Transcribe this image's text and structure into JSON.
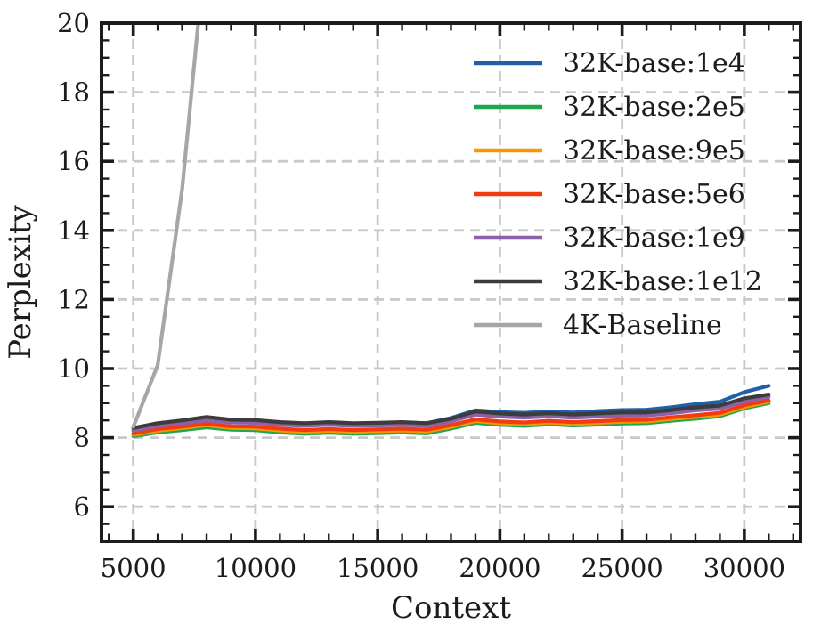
{
  "figure": {
    "title": "",
    "xlabel": "Context",
    "ylabel": "Perplexity"
  },
  "colors": {
    "axis": "#1c1c1c",
    "grid": "#c9c9c9",
    "background": "#ffffff"
  },
  "chart_data": {
    "type": "line",
    "title": "",
    "xlabel": "Context",
    "ylabel": "Perplexity",
    "xlim": [
      3700,
      32300
    ],
    "ylim": [
      5,
      20
    ],
    "grid": {
      "visible": true,
      "style": "dashed",
      "color": "#c9c9c9"
    },
    "x_major_ticks": [
      5000,
      10000,
      15000,
      20000,
      25000,
      30000
    ],
    "x_tick_labels": [
      "5000",
      "10000",
      "15000",
      "20000",
      "25000",
      "30000"
    ],
    "x_minor_step": 1000,
    "y_major_ticks": [
      6,
      8,
      10,
      12,
      14,
      16,
      18,
      20
    ],
    "y_tick_labels": [
      "6",
      "8",
      "10",
      "12",
      "14",
      "16",
      "18",
      "20"
    ],
    "y_minor_step": 0.5,
    "legend": {
      "position": "upper right",
      "entries": [
        "32K-base:1e4",
        "32K-base:2e5",
        "32K-base:9e5",
        "32K-base:5e6",
        "32K-base:1e9",
        "32K-base:1e12",
        "4K-Baseline"
      ]
    },
    "x": [
      5000,
      6000,
      7000,
      8000,
      9000,
      10000,
      11000,
      12000,
      13000,
      14000,
      15000,
      16000,
      17000,
      18000,
      19000,
      20000,
      21000,
      22000,
      23000,
      24000,
      25000,
      26000,
      27000,
      28000,
      29000,
      30000,
      31000
    ],
    "series": [
      {
        "name": "32K-base:1e4",
        "color": "#1e61a8",
        "values": [
          8.26,
          8.4,
          8.48,
          8.58,
          8.5,
          8.49,
          8.44,
          8.41,
          8.44,
          8.41,
          8.42,
          8.44,
          8.42,
          8.57,
          8.79,
          8.74,
          8.72,
          8.76,
          8.73,
          8.77,
          8.8,
          8.81,
          8.88,
          8.97,
          9.04,
          9.32,
          9.5
        ]
      },
      {
        "name": "32K-base:2e5",
        "color": "#1ea84c",
        "values": [
          8.04,
          8.15,
          8.22,
          8.3,
          8.23,
          8.22,
          8.15,
          8.11,
          8.14,
          8.11,
          8.13,
          8.15,
          8.12,
          8.26,
          8.43,
          8.37,
          8.34,
          8.39,
          8.35,
          8.38,
          8.41,
          8.42,
          8.49,
          8.55,
          8.62,
          8.85,
          9.0
        ]
      },
      {
        "name": "32K-base:9e5",
        "color": "#fd9404",
        "values": [
          8.08,
          8.2,
          8.28,
          8.36,
          8.28,
          8.27,
          8.21,
          8.17,
          8.2,
          8.17,
          8.19,
          8.21,
          8.18,
          8.31,
          8.48,
          8.42,
          8.39,
          8.44,
          8.4,
          8.43,
          8.46,
          8.47,
          8.54,
          8.6,
          8.67,
          8.89,
          9.04
        ]
      },
      {
        "name": "32K-base:5e6",
        "color": "#f13b10",
        "values": [
          8.12,
          8.25,
          8.32,
          8.4,
          8.33,
          8.32,
          8.26,
          8.22,
          8.25,
          8.22,
          8.24,
          8.26,
          8.23,
          8.36,
          8.53,
          8.47,
          8.44,
          8.49,
          8.45,
          8.48,
          8.51,
          8.52,
          8.59,
          8.65,
          8.72,
          8.94,
          9.08
        ]
      },
      {
        "name": "32K-base:1e9",
        "color": "#8c61aa",
        "values": [
          8.2,
          8.34,
          8.42,
          8.5,
          8.44,
          8.43,
          8.37,
          8.34,
          8.37,
          8.34,
          8.35,
          8.37,
          8.34,
          8.47,
          8.67,
          8.61,
          8.58,
          8.62,
          8.58,
          8.61,
          8.64,
          8.64,
          8.71,
          8.79,
          8.84,
          9.04,
          9.18
        ]
      },
      {
        "name": "32K-base:1e12",
        "color": "#3c3c3c",
        "values": [
          8.28,
          8.42,
          8.5,
          8.6,
          8.52,
          8.51,
          8.45,
          8.42,
          8.45,
          8.42,
          8.43,
          8.45,
          8.42,
          8.55,
          8.76,
          8.7,
          8.67,
          8.71,
          8.67,
          8.7,
          8.73,
          8.73,
          8.8,
          8.88,
          8.93,
          9.14,
          9.25
        ]
      },
      {
        "name": "4K-Baseline",
        "color": "#a6a6a6",
        "x": [
          5000,
          6000,
          7000,
          8000
        ],
        "values": [
          8.31,
          10.1,
          15.2,
          22.5
        ]
      }
    ]
  }
}
